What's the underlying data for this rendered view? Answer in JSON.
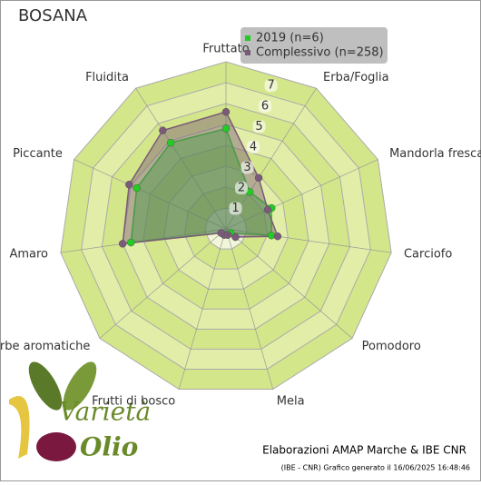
{
  "chart_data": {
    "type": "radar",
    "title": "BOSANA",
    "categories": [
      "Fruttato",
      "Erba/Foglia",
      "Mandorla fresca",
      "Carciofo",
      "Pomodoro",
      "Mela",
      "Frutti di bosco",
      "Erbe aromatiche",
      "Amaro",
      "Piccante",
      "Fluidita"
    ],
    "series": [
      {
        "name": "2019 (n=6)",
        "color": "#22cc22",
        "values": [
          4.8,
          2.1,
          2.4,
          2.2,
          0.3,
          0.3,
          0.3,
          0.3,
          4.6,
          4.7,
          4.9
        ]
      },
      {
        "name": "Complessivo (n=258)",
        "color": "#7a5a78",
        "values": [
          5.6,
          2.9,
          2.2,
          2.5,
          0.6,
          0.3,
          0.3,
          0.3,
          5.0,
          5.1,
          5.6
        ]
      }
    ],
    "rlim": [
      0,
      8
    ],
    "rticks": [
      1,
      2,
      3,
      4,
      5,
      6,
      7
    ],
    "grid": true,
    "legend": "top-right",
    "credit": "Elaborazioni AMAP Marche & IBE CNR",
    "footnote": "(IBE - CNR) Grafico generato il 16/06/2025 16:48:46",
    "logo": [
      "Varietà",
      "Olio"
    ]
  }
}
